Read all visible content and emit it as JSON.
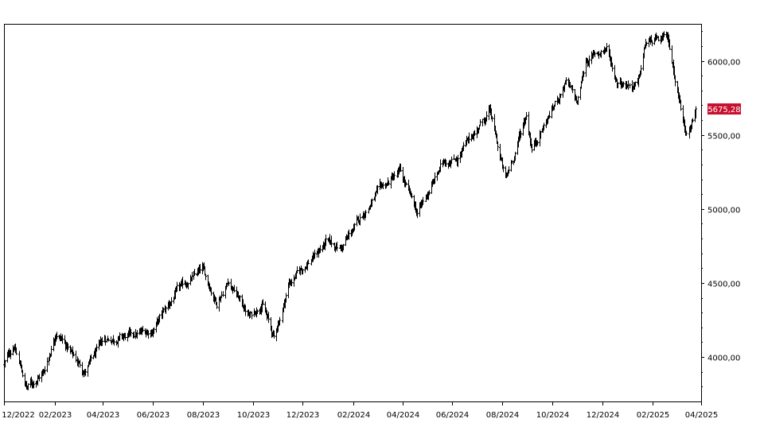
{
  "chart_data": {
    "type": "ohlc",
    "title": "",
    "xlabel": "",
    "ylabel": "",
    "x_range": [
      "2022-12-01",
      "2025-04-01"
    ],
    "ylim": [
      3700,
      6250
    ],
    "y_scale": "linear",
    "grid": false,
    "legend": "none",
    "x_ticks": [
      "12/2022",
      "02/2023",
      "04/2023",
      "06/2023",
      "08/2023",
      "10/2023",
      "12/2023",
      "02/2024",
      "04/2024",
      "06/2024",
      "08/2024",
      "10/2024",
      "12/2024",
      "02/2025",
      "04/2025"
    ],
    "y_ticks": [
      {
        "value": 4000,
        "label": "4000,00"
      },
      {
        "value": 4500,
        "label": "4500,00"
      },
      {
        "value": 5000,
        "label": "5000,00"
      },
      {
        "value": 5500,
        "label": "5500,00"
      },
      {
        "value": 6000,
        "label": "6000,00"
      }
    ],
    "last_price": {
      "value": 5675.28,
      "label": "5675,28"
    },
    "colors": {
      "bars": "#000000",
      "last_price_bg": "#c8102e",
      "last_price_text": "#ffffff",
      "axis": "#000000"
    },
    "anchors": [
      {
        "date": "2022-12-01",
        "close": 3950
      },
      {
        "date": "2022-12-13",
        "close": 4080
      },
      {
        "date": "2022-12-28",
        "close": 3790
      },
      {
        "date": "2023-01-19",
        "close": 3900
      },
      {
        "date": "2023-02-02",
        "close": 4180
      },
      {
        "date": "2023-03-09",
        "close": 3900
      },
      {
        "date": "2023-04-03",
        "close": 4120
      },
      {
        "date": "2023-05-05",
        "close": 4140
      },
      {
        "date": "2023-05-31",
        "close": 4180
      },
      {
        "date": "2023-06-30",
        "close": 4440
      },
      {
        "date": "2023-07-31",
        "close": 4590
      },
      {
        "date": "2023-08-18",
        "close": 4370
      },
      {
        "date": "2023-09-01",
        "close": 4520
      },
      {
        "date": "2023-09-27",
        "close": 4270
      },
      {
        "date": "2023-10-12",
        "close": 4370
      },
      {
        "date": "2023-10-27",
        "close": 4120
      },
      {
        "date": "2023-11-14",
        "close": 4500
      },
      {
        "date": "2023-12-29",
        "close": 4770
      },
      {
        "date": "2024-01-17",
        "close": 4740
      },
      {
        "date": "2024-02-29",
        "close": 5100
      },
      {
        "date": "2024-03-28",
        "close": 5250
      },
      {
        "date": "2024-04-19",
        "close": 4970
      },
      {
        "date": "2024-05-21",
        "close": 5320
      },
      {
        "date": "2024-06-07",
        "close": 5350
      },
      {
        "date": "2024-07-16",
        "close": 5660
      },
      {
        "date": "2024-08-05",
        "close": 5190
      },
      {
        "date": "2024-08-30",
        "close": 5640
      },
      {
        "date": "2024-09-06",
        "close": 5410
      },
      {
        "date": "2024-10-18",
        "close": 5860
      },
      {
        "date": "2024-10-31",
        "close": 5710
      },
      {
        "date": "2024-11-11",
        "close": 6000
      },
      {
        "date": "2024-12-06",
        "close": 6090
      },
      {
        "date": "2024-12-18",
        "close": 5870
      },
      {
        "date": "2025-01-13",
        "close": 5830
      },
      {
        "date": "2025-01-23",
        "close": 6120
      },
      {
        "date": "2025-02-19",
        "close": 6145
      },
      {
        "date": "2025-03-13",
        "close": 5520
      },
      {
        "date": "2025-03-25",
        "close": 5675
      }
    ]
  }
}
